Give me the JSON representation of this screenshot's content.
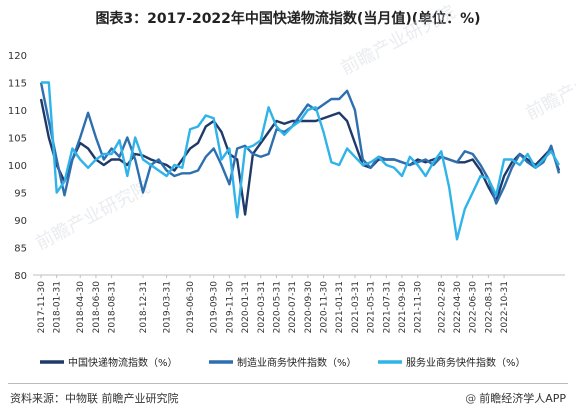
{
  "title": "图表3：2017-2022年中国快递物流指数(当月值)(单位：%)",
  "source": "资料来源：中物联 前瞻产业研究院",
  "brand": {
    "logo": "@",
    "text": "前瞻经济学人APP"
  },
  "watermark": "前瞻产业研究院",
  "chart_data": {
    "type": "line",
    "title": "图表3：2017-2022年中国快递物流指数(当月值)(单位：%)",
    "ylim": [
      80,
      120
    ],
    "yticks": [
      80,
      85,
      90,
      95,
      100,
      105,
      110,
      115,
      120
    ],
    "grid": false,
    "legend_position": "bottom",
    "x_start": "2017-11",
    "x_tick_labels": [
      "2017-11-30",
      "2018-01-31",
      "2018-04-30",
      "2018-06-30",
      "2018-08-31",
      "2018-12-31",
      "2019-03-31",
      "2019-06-30",
      "2019-09-30",
      "2019-11-30",
      "2020-01-31",
      "2020-03-31",
      "2020-05-31",
      "2020-07-31",
      "2020-09-30",
      "2020-11-30",
      "2021-01-31",
      "2021-03-31",
      "2021-05-31",
      "2021-07-31",
      "2021-09-30",
      "2021-11-30",
      "2022-02-28",
      "2022-04-30",
      "2022-06-30",
      "2022-08-31",
      "2022-10-31"
    ],
    "series": [
      {
        "name": "中国快递物流指数（%）",
        "color": "#1f3a68",
        "values": [
          112,
          105,
          100,
          97,
          101,
          104,
          103,
          101,
          100,
          101,
          101,
          100,
          102,
          101.7,
          101,
          100.5,
          100,
          99,
          101,
          103,
          104,
          107,
          108,
          106,
          102,
          101,
          91,
          102,
          104,
          106,
          108,
          107.5,
          108,
          108,
          108,
          108,
          108.5,
          109,
          109.5,
          108,
          104,
          100,
          99.5,
          101,
          101,
          101,
          100.5,
          100,
          101,
          100.5,
          101,
          101.5,
          101,
          100.5,
          100.5,
          101,
          99,
          96,
          93.5,
          98,
          100.5,
          102,
          101,
          100,
          101.5,
          103,
          99
        ]
      },
      {
        "name": "制造业商务快件指数（%）",
        "color": "#2e6fb0",
        "values": [
          115,
          108,
          101,
          94.5,
          101,
          105,
          109.5,
          105,
          101,
          103,
          101.5,
          105,
          101,
          95,
          100,
          101,
          99,
          98,
          98.5,
          98.5,
          99,
          101.5,
          103,
          100,
          96.5,
          103,
          103.5,
          102,
          101.5,
          102,
          106.5,
          106,
          107,
          109,
          111,
          110,
          111,
          112,
          112,
          113.5,
          110,
          101,
          99.5,
          101.5,
          101,
          101,
          100.5,
          100,
          100.5,
          101,
          100,
          101.5,
          101,
          100.5,
          102.5,
          102,
          100,
          97.5,
          93,
          96,
          99.5,
          102,
          100.5,
          99.5,
          100.5,
          103.5,
          98.5
        ]
      },
      {
        "name": "服务业商务快件指数（%）",
        "color": "#2fb3e8",
        "values": [
          115,
          115,
          95,
          97,
          103,
          101,
          99.5,
          101,
          102,
          102,
          104.5,
          98,
          105,
          101,
          100,
          99,
          98,
          100,
          99.5,
          106.5,
          107,
          109,
          108.5,
          101,
          103,
          90.5,
          103,
          103.5,
          104.5,
          110.5,
          107,
          105.5,
          107,
          108,
          110,
          110.5,
          106,
          100.5,
          100,
          103,
          101.5,
          100,
          100.5,
          101.5,
          100,
          99.5,
          98,
          101.5,
          100,
          98,
          100.5,
          102.5,
          96,
          86.5,
          92,
          95,
          98,
          97.5,
          94.5,
          101,
          101,
          100,
          102,
          99.5,
          101,
          102.5,
          100
        ]
      }
    ]
  }
}
